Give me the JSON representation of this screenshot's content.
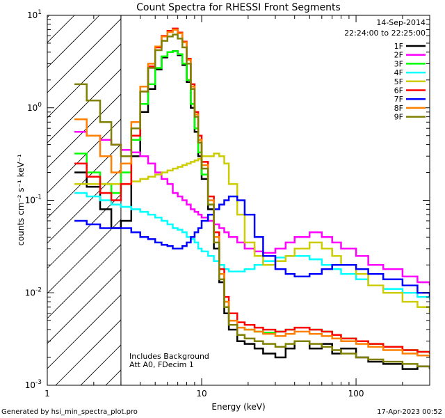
{
  "chart_data": {
    "type": "line",
    "title": "Count Spectra for RHESSI Front Segments",
    "date": "14-Sep-2014",
    "time_range": "22:24:00 to 22:25:00",
    "xlabel": "Energy (keV)",
    "ylabel": "counts cm⁻² s⁻¹ keV⁻¹",
    "x_scale": "log",
    "y_scale": "log",
    "xlim": [
      1,
      300
    ],
    "ylim": [
      0.001,
      10
    ],
    "x_ticks": [
      {
        "value": 1,
        "label": "1"
      },
      {
        "value": 10,
        "label": "10"
      },
      {
        "value": 100,
        "label": "100"
      }
    ],
    "y_ticks": [
      {
        "value": 10,
        "base": "10",
        "exp": "1"
      },
      {
        "value": 1,
        "base": "10",
        "exp": "0"
      },
      {
        "value": 0.1,
        "base": "10",
        "exp": "-1"
      },
      {
        "value": 0.01,
        "base": "10",
        "exp": "-2"
      },
      {
        "value": 0.001,
        "base": "10",
        "exp": "-3"
      }
    ],
    "shaded_region": {
      "x_from": 1,
      "x_to": 3,
      "pattern": "diagonal-hatch"
    },
    "annotations": [
      "Includes Background",
      "Att A0, FDecim 1"
    ],
    "legend_position": "top-right",
    "series": [
      {
        "name": "1F",
        "color": "#000000",
        "x": [
          1.5,
          1.8,
          2.2,
          2.6,
          3.0,
          3.5,
          4,
          4.5,
          5,
          5.5,
          6,
          6.5,
          7,
          7.5,
          8,
          8.5,
          9,
          9.5,
          10,
          11,
          12,
          13,
          14,
          15,
          17,
          19,
          22,
          25,
          30,
          35,
          40,
          50,
          60,
          70,
          80,
          100,
          120,
          150,
          200,
          250,
          300
        ],
        "y": [
          0.2,
          0.14,
          0.08,
          0.05,
          0.06,
          0.3,
          0.9,
          1.6,
          2.6,
          3.5,
          4.0,
          4.1,
          3.7,
          2.9,
          1.9,
          1.0,
          0.55,
          0.3,
          0.17,
          0.08,
          0.03,
          0.013,
          0.006,
          0.004,
          0.003,
          0.0028,
          0.0025,
          0.0022,
          0.002,
          0.0025,
          0.003,
          0.0025,
          0.0028,
          0.0022,
          0.0025,
          0.002,
          0.0018,
          0.0017,
          0.0015,
          0.0016,
          0.0015
        ]
      },
      {
        "name": "2F",
        "color": "#ff00ff",
        "x": [
          1.5,
          1.8,
          2.2,
          2.6,
          3.0,
          3.5,
          4,
          4.5,
          5,
          5.5,
          6,
          6.5,
          7,
          7.5,
          8,
          8.5,
          9,
          9.5,
          10,
          11,
          12,
          13,
          14,
          15,
          17,
          19,
          22,
          25,
          30,
          35,
          40,
          50,
          60,
          70,
          80,
          100,
          120,
          150,
          200,
          250,
          300
        ],
        "y": [
          0.55,
          0.5,
          0.45,
          0.4,
          0.35,
          0.33,
          0.3,
          0.25,
          0.2,
          0.17,
          0.15,
          0.12,
          0.11,
          0.1,
          0.09,
          0.08,
          0.075,
          0.07,
          0.065,
          0.06,
          0.055,
          0.05,
          0.045,
          0.04,
          0.035,
          0.03,
          0.028,
          0.027,
          0.03,
          0.035,
          0.04,
          0.045,
          0.04,
          0.035,
          0.03,
          0.025,
          0.02,
          0.018,
          0.015,
          0.013,
          0.012
        ]
      },
      {
        "name": "3F",
        "color": "#00ff00",
        "x": [
          1.5,
          1.8,
          2.2,
          2.6,
          3.0,
          3.5,
          4,
          4.5,
          5,
          5.5,
          6,
          6.5,
          7,
          7.5,
          8,
          8.5,
          9,
          9.5,
          10,
          11,
          12,
          13,
          14,
          15,
          17,
          19,
          22,
          25,
          30,
          35,
          40,
          50,
          60,
          70,
          80,
          100,
          120,
          150,
          200,
          250,
          300
        ],
        "y": [
          0.32,
          0.2,
          0.15,
          0.12,
          0.2,
          0.45,
          1.1,
          1.8,
          2.7,
          3.6,
          4.0,
          4.1,
          3.8,
          3.0,
          2.0,
          1.1,
          0.6,
          0.33,
          0.19,
          0.09,
          0.04,
          0.016,
          0.008,
          0.005,
          0.0042,
          0.004,
          0.0038,
          0.0037,
          0.0038,
          0.004,
          0.0042,
          0.004,
          0.0038,
          0.0035,
          0.0032,
          0.003,
          0.0028,
          0.0026,
          0.0024,
          0.0023,
          0.0022
        ]
      },
      {
        "name": "4F",
        "color": "#00ffff",
        "x": [
          1.5,
          1.8,
          2.2,
          2.6,
          3.0,
          3.5,
          4,
          4.5,
          5,
          5.5,
          6,
          6.5,
          7,
          7.5,
          8,
          8.5,
          9,
          9.5,
          10,
          11,
          12,
          13,
          14,
          15,
          17,
          19,
          22,
          25,
          30,
          35,
          40,
          50,
          60,
          70,
          80,
          100,
          120,
          150,
          200,
          250,
          300
        ],
        "y": [
          0.12,
          0.11,
          0.1,
          0.09,
          0.085,
          0.08,
          0.075,
          0.07,
          0.065,
          0.06,
          0.055,
          0.05,
          0.048,
          0.045,
          0.04,
          0.038,
          0.035,
          0.03,
          0.028,
          0.025,
          0.022,
          0.02,
          0.018,
          0.017,
          0.017,
          0.018,
          0.02,
          0.022,
          0.024,
          0.025,
          0.025,
          0.023,
          0.02,
          0.018,
          0.016,
          0.014,
          0.012,
          0.011,
          0.01,
          0.009,
          0.0085
        ]
      },
      {
        "name": "5F",
        "color": "#cccc00",
        "x": [
          1.5,
          1.8,
          2.2,
          2.6,
          3.0,
          3.5,
          4,
          4.5,
          5,
          5.5,
          6,
          6.5,
          7,
          7.5,
          8,
          8.5,
          9,
          9.5,
          10,
          11,
          12,
          13,
          14,
          15,
          17,
          19,
          22,
          25,
          30,
          35,
          40,
          50,
          60,
          70,
          80,
          100,
          120,
          150,
          200,
          250,
          300
        ],
        "y": [
          0.15,
          0.15,
          0.15,
          0.15,
          0.15,
          0.16,
          0.17,
          0.18,
          0.19,
          0.2,
          0.21,
          0.22,
          0.23,
          0.24,
          0.25,
          0.26,
          0.27,
          0.28,
          0.3,
          0.3,
          0.32,
          0.3,
          0.25,
          0.15,
          0.07,
          0.035,
          0.025,
          0.02,
          0.022,
          0.025,
          0.03,
          0.035,
          0.03,
          0.025,
          0.02,
          0.016,
          0.012,
          0.01,
          0.008,
          0.007,
          0.006
        ]
      },
      {
        "name": "6F",
        "color": "#ff0000",
        "x": [
          1.5,
          1.8,
          2.2,
          2.6,
          3.0,
          3.5,
          4,
          4.5,
          5,
          5.5,
          6,
          6.5,
          7,
          7.5,
          8,
          8.5,
          9,
          9.5,
          10,
          11,
          12,
          13,
          14,
          15,
          17,
          19,
          22,
          25,
          30,
          35,
          40,
          50,
          60,
          70,
          80,
          100,
          120,
          150,
          200,
          250,
          300
        ],
        "y": [
          0.25,
          0.18,
          0.12,
          0.1,
          0.15,
          0.5,
          1.5,
          2.8,
          4.5,
          6.0,
          6.8,
          7.2,
          6.5,
          5.2,
          3.4,
          1.8,
          0.9,
          0.5,
          0.26,
          0.11,
          0.045,
          0.018,
          0.009,
          0.006,
          0.0048,
          0.0045,
          0.0042,
          0.004,
          0.0038,
          0.004,
          0.0042,
          0.004,
          0.0038,
          0.0035,
          0.0032,
          0.003,
          0.0028,
          0.0026,
          0.0024,
          0.0023,
          0.0022
        ]
      },
      {
        "name": "7F",
        "color": "#0000ff",
        "x": [
          1.5,
          1.8,
          2.2,
          2.6,
          3.0,
          3.5,
          4,
          4.5,
          5,
          5.5,
          6,
          6.5,
          7,
          7.5,
          8,
          8.5,
          9,
          9.5,
          10,
          11,
          12,
          13,
          14,
          15,
          17,
          19,
          22,
          25,
          30,
          35,
          40,
          50,
          60,
          70,
          80,
          100,
          120,
          150,
          200,
          250,
          300
        ],
        "y": [
          0.06,
          0.055,
          0.05,
          0.05,
          0.05,
          0.045,
          0.04,
          0.038,
          0.035,
          0.033,
          0.032,
          0.03,
          0.03,
          0.032,
          0.035,
          0.04,
          0.045,
          0.05,
          0.06,
          0.07,
          0.08,
          0.09,
          0.1,
          0.11,
          0.1,
          0.07,
          0.04,
          0.025,
          0.018,
          0.016,
          0.015,
          0.016,
          0.018,
          0.02,
          0.02,
          0.018,
          0.016,
          0.014,
          0.012,
          0.01,
          0.009
        ]
      },
      {
        "name": "8F",
        "color": "#ff8000",
        "x": [
          1.5,
          1.8,
          2.2,
          2.6,
          3.0,
          3.5,
          4,
          4.5,
          5,
          5.5,
          6,
          6.5,
          7,
          7.5,
          8,
          8.5,
          9,
          9.5,
          10,
          11,
          12,
          13,
          14,
          15,
          17,
          19,
          22,
          25,
          30,
          35,
          40,
          50,
          60,
          70,
          80,
          100,
          120,
          150,
          200,
          250,
          300
        ],
        "y": [
          0.75,
          0.5,
          0.3,
          0.2,
          0.25,
          0.7,
          1.7,
          3.0,
          4.6,
          5.9,
          6.6,
          7.0,
          6.4,
          5.1,
          3.3,
          1.7,
          0.85,
          0.45,
          0.24,
          0.1,
          0.04,
          0.016,
          0.008,
          0.005,
          0.0042,
          0.004,
          0.0038,
          0.0036,
          0.0034,
          0.0036,
          0.0038,
          0.0036,
          0.0034,
          0.0032,
          0.003,
          0.0028,
          0.0026,
          0.0024,
          0.0022,
          0.0021,
          0.002
        ]
      },
      {
        "name": "9F",
        "color": "#808000",
        "x": [
          1.5,
          1.8,
          2.2,
          2.6,
          3.0,
          3.5,
          4,
          4.5,
          5,
          5.5,
          6,
          6.5,
          7,
          7.5,
          8,
          8.5,
          9,
          9.5,
          10,
          11,
          12,
          13,
          14,
          15,
          17,
          19,
          22,
          25,
          30,
          35,
          40,
          50,
          60,
          70,
          80,
          100,
          120,
          150,
          200,
          250,
          300
        ],
        "y": [
          1.8,
          1.2,
          0.7,
          0.4,
          0.3,
          0.6,
          1.5,
          2.7,
          4.2,
          5.3,
          5.9,
          6.2,
          5.6,
          4.5,
          3.0,
          1.6,
          0.8,
          0.42,
          0.22,
          0.09,
          0.035,
          0.014,
          0.007,
          0.0045,
          0.0035,
          0.0032,
          0.003,
          0.0028,
          0.0026,
          0.0028,
          0.003,
          0.0028,
          0.0026,
          0.0024,
          0.0022,
          0.002,
          0.0019,
          0.0018,
          0.0017,
          0.0016,
          0.0015
        ]
      }
    ]
  },
  "footer": {
    "generator": "Generated by hsi_min_spectra_plot.pro",
    "datetime": "17-Apr-2023 00:52"
  }
}
